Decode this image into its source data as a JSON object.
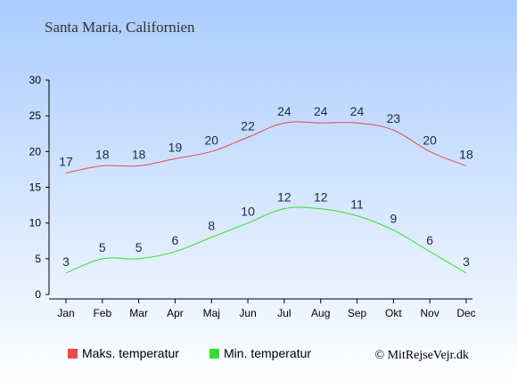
{
  "chart_data": {
    "type": "line",
    "title": "Santa Maria, Californien",
    "categories": [
      "Jan",
      "Feb",
      "Mar",
      "Apr",
      "Maj",
      "Jun",
      "Jul",
      "Aug",
      "Sep",
      "Okt",
      "Nov",
      "Dec"
    ],
    "series": [
      {
        "name": "Maks. temperatur",
        "color": "#e84a4a",
        "values": [
          17,
          18,
          18,
          19,
          20,
          22,
          24,
          24,
          24,
          23,
          20,
          18
        ]
      },
      {
        "name": "Min. temperatur",
        "color": "#33dd33",
        "values": [
          3,
          5,
          5,
          6,
          8,
          10,
          12,
          12,
          11,
          9,
          6,
          3
        ]
      }
    ],
    "ylim": [
      0,
      30
    ],
    "yticks": [
      0,
      5,
      10,
      15,
      20,
      25,
      30
    ],
    "xlabel": "",
    "ylabel": "",
    "grid": false,
    "legend": "bottom",
    "background_gradient": [
      "#aaccff",
      "#ffffff"
    ],
    "credit": "© MitRejseVejr.dk"
  }
}
